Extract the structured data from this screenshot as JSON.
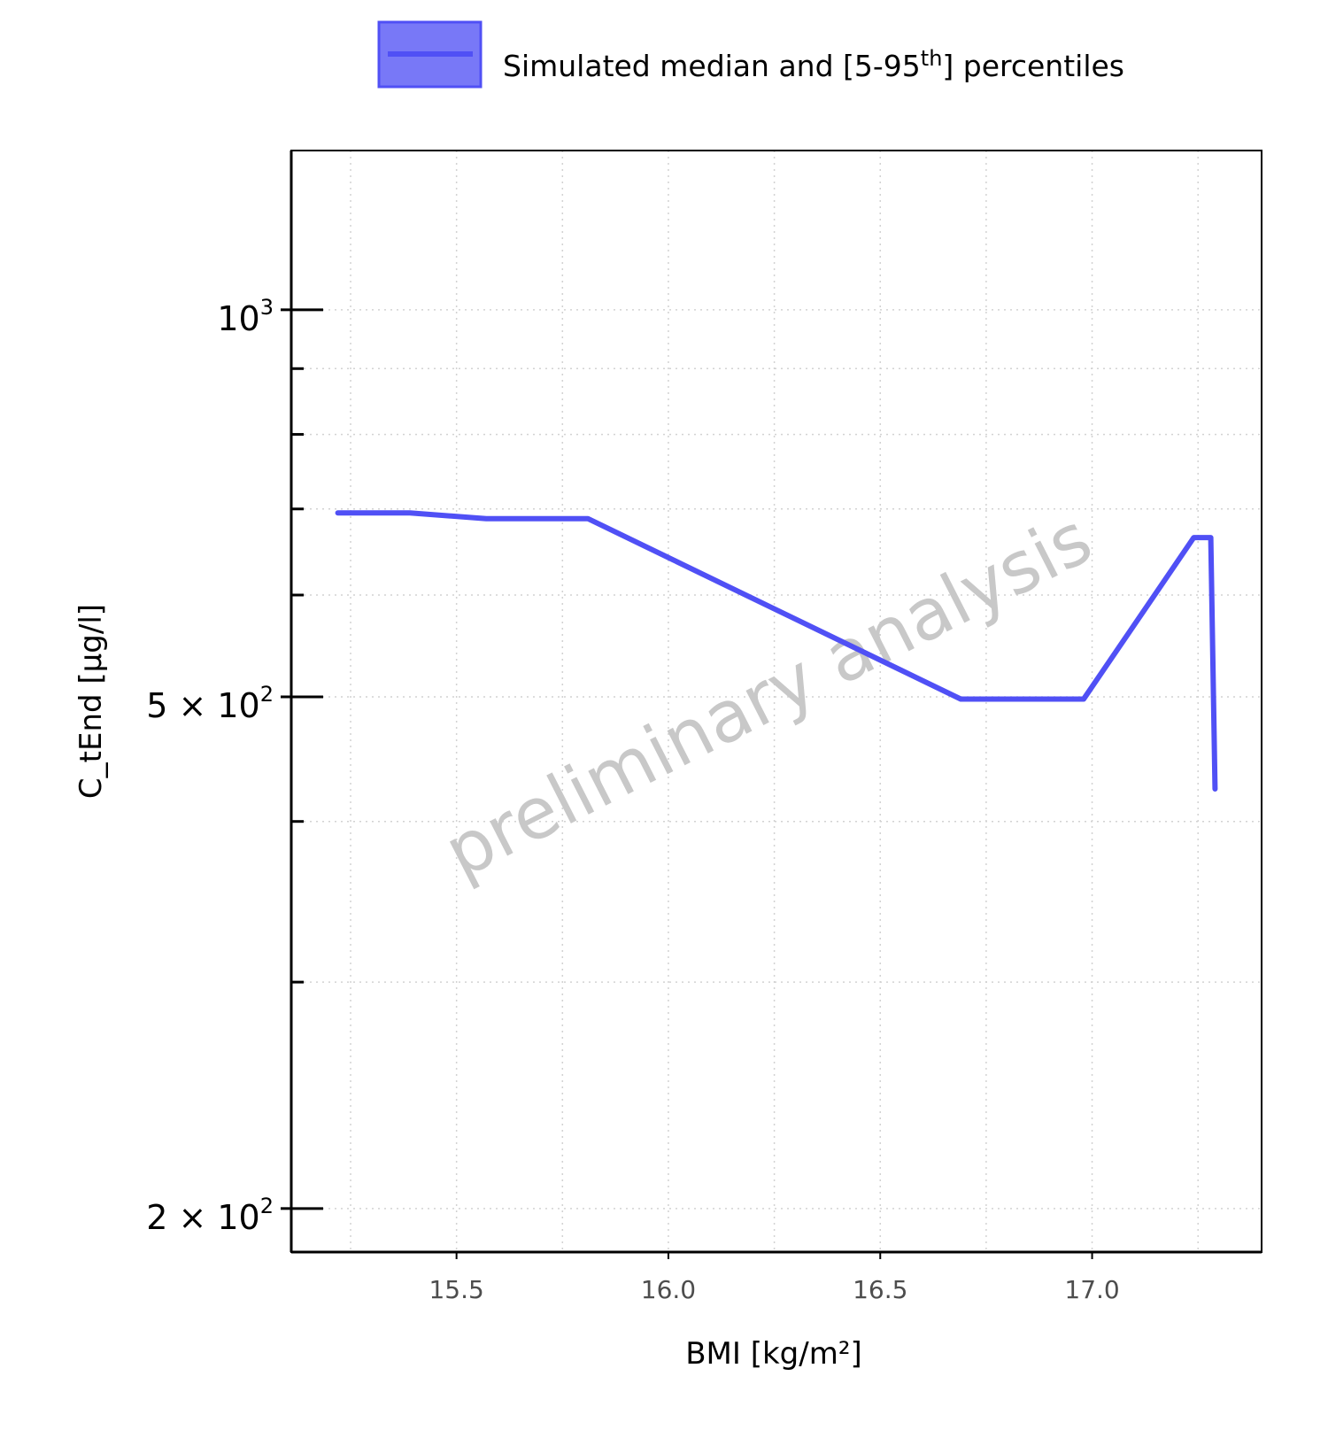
{
  "chart_data": {
    "type": "line",
    "title": "",
    "xlabel": "BMI [kg/m²]",
    "ylabel": "C_tEnd [µg/l]",
    "y_scale": "log",
    "xlim": [
      15.11,
      17.4
    ],
    "ylim": [
      185,
      1330
    ],
    "grid": true,
    "legend_position": "top",
    "x_ticks": [
      {
        "value": 15.5,
        "label": "15.5"
      },
      {
        "value": 16.0,
        "label": "16.0"
      },
      {
        "value": 16.5,
        "label": "16.5"
      },
      {
        "value": 17.0,
        "label": "17.0"
      }
    ],
    "y_ticks": [
      {
        "value": 1000,
        "base": "10",
        "exp": "3"
      },
      {
        "value": 500,
        "base": "5 × 10",
        "exp": "2"
      },
      {
        "value": 200,
        "base": "2 × 10",
        "exp": "2"
      }
    ],
    "y_minor_ticks": [
      300,
      400,
      600,
      700,
      800,
      900
    ],
    "x_minor_grid": [
      15.25,
      15.75,
      16.25,
      16.75,
      17.25
    ],
    "series": [
      {
        "name": "Simulated median and [5-95th] percentiles",
        "color": "#5050f5",
        "x": [
          15.22,
          15.39,
          15.57,
          15.81,
          16.69,
          16.98,
          17.24,
          17.28,
          17.29
        ],
        "y": [
          695,
          695,
          688,
          688,
          498,
          498,
          665,
          665,
          424
        ]
      }
    ],
    "legend": {
      "prefix": "Simulated median and [5-95",
      "sup": "th",
      "suffix": "] percentiles"
    },
    "watermark": "preliminary analysis"
  }
}
